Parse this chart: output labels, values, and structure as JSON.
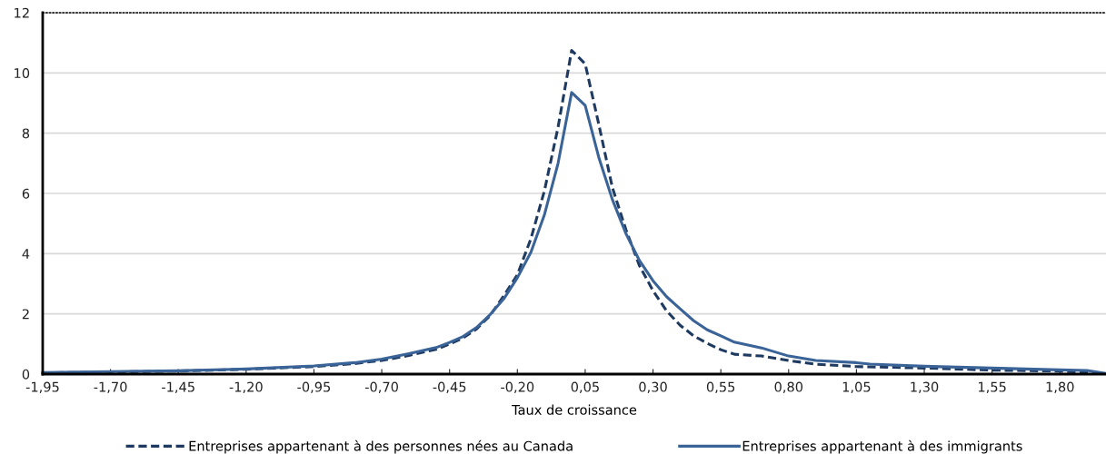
{
  "chart_data": {
    "type": "line",
    "xlabel": "Taux de croissance",
    "xlim": [
      -1.95,
      1.97
    ],
    "ylim": [
      0,
      12
    ],
    "yticks": [
      0,
      2,
      4,
      6,
      8,
      10,
      12
    ],
    "xticks": [
      {
        "value": -1.95,
        "label": "-1,95"
      },
      {
        "value": -1.7,
        "label": "-1,70"
      },
      {
        "value": -1.45,
        "label": "-1,45"
      },
      {
        "value": -1.2,
        "label": "-1,20"
      },
      {
        "value": -0.95,
        "label": "-0,95"
      },
      {
        "value": -0.7,
        "label": "-0,70"
      },
      {
        "value": -0.45,
        "label": "-0,45"
      },
      {
        "value": -0.2,
        "label": "-0,20"
      },
      {
        "value": 0.05,
        "label": "0,05"
      },
      {
        "value": 0.3,
        "label": "0,30"
      },
      {
        "value": 0.55,
        "label": "0,55"
      },
      {
        "value": 0.8,
        "label": "0,80"
      },
      {
        "value": 1.05,
        "label": "1,05"
      },
      {
        "value": 1.3,
        "label": "1,30"
      },
      {
        "value": 1.55,
        "label": "1,55"
      },
      {
        "value": 1.8,
        "label": "1,80"
      }
    ],
    "grid": "y",
    "legend": "bottom",
    "marker": "none",
    "series": [
      {
        "name": "Entreprises appartenant à des personnes nées au Canada",
        "color": "#1f3a60",
        "line_style": "dashed",
        "x": [
          -1.95,
          -1.7,
          -1.45,
          -1.2,
          -0.95,
          -0.8,
          -0.7,
          -0.6,
          -0.5,
          -0.45,
          -0.4,
          -0.35,
          -0.3,
          -0.25,
          -0.2,
          -0.15,
          -0.1,
          -0.05,
          0.0,
          0.05,
          0.1,
          0.15,
          0.2,
          0.25,
          0.3,
          0.35,
          0.4,
          0.45,
          0.5,
          0.55,
          0.6,
          0.7,
          0.8,
          0.9,
          1.05,
          1.3,
          1.55,
          1.8,
          1.95
        ],
        "values": [
          0.04,
          0.07,
          0.1,
          0.16,
          0.25,
          0.35,
          0.45,
          0.62,
          0.82,
          1.0,
          1.2,
          1.5,
          1.95,
          2.6,
          3.3,
          4.5,
          6.1,
          8.2,
          10.75,
          10.3,
          8.3,
          6.2,
          4.8,
          3.6,
          2.77,
          2.1,
          1.62,
          1.27,
          1.02,
          0.81,
          0.66,
          0.6,
          0.45,
          0.33,
          0.25,
          0.2,
          0.13,
          0.1,
          0.03
        ]
      },
      {
        "name": "Entreprises appartenant à des immigrants",
        "color": "#3a6397",
        "line_style": "solid",
        "x": [
          -1.95,
          -1.7,
          -1.45,
          -1.2,
          -0.95,
          -0.8,
          -0.7,
          -0.6,
          -0.5,
          -0.45,
          -0.4,
          -0.35,
          -0.3,
          -0.25,
          -0.2,
          -0.15,
          -0.1,
          -0.05,
          0.0,
          0.05,
          0.1,
          0.15,
          0.2,
          0.25,
          0.3,
          0.35,
          0.4,
          0.45,
          0.5,
          0.55,
          0.6,
          0.7,
          0.8,
          0.9,
          1.05,
          1.1,
          1.3,
          1.55,
          1.8,
          1.9,
          1.97
        ],
        "values": [
          0.05,
          0.08,
          0.11,
          0.17,
          0.27,
          0.38,
          0.5,
          0.68,
          0.88,
          1.05,
          1.25,
          1.55,
          1.98,
          2.5,
          3.2,
          4.05,
          5.3,
          7.0,
          9.35,
          8.92,
          7.2,
          5.8,
          4.67,
          3.77,
          3.1,
          2.57,
          2.17,
          1.77,
          1.47,
          1.27,
          1.06,
          0.87,
          0.6,
          0.45,
          0.38,
          0.33,
          0.26,
          0.2,
          0.14,
          0.12,
          0.02
        ]
      }
    ]
  }
}
